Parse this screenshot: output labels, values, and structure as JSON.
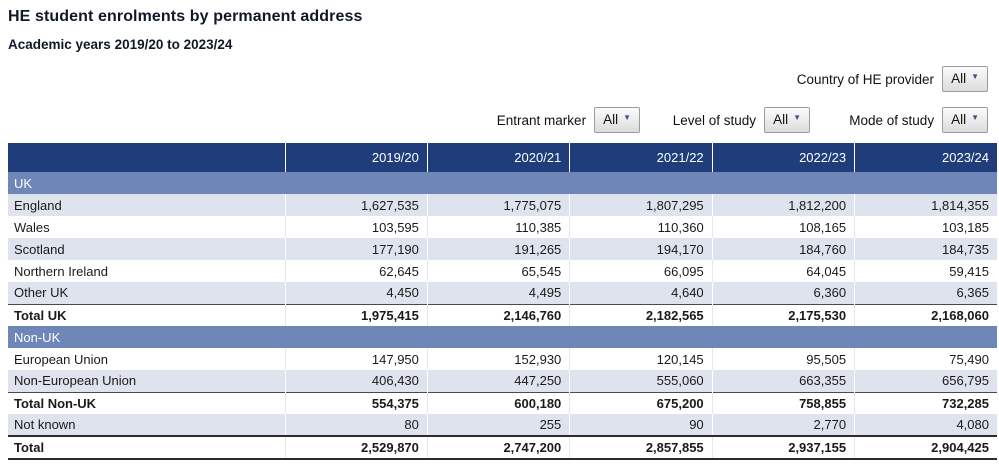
{
  "page": {
    "title": "HE student enrolments by permanent address",
    "subtitle": "Academic years 2019/20 to 2023/24"
  },
  "filters": {
    "country": {
      "label": "Country of HE provider",
      "value": "All"
    },
    "entrant": {
      "label": "Entrant marker",
      "value": "All"
    },
    "level": {
      "label": "Level of study",
      "value": "All"
    },
    "mode": {
      "label": "Mode of study",
      "value": "All"
    }
  },
  "icons": {
    "dropdown_caret": "▼"
  },
  "colors": {
    "header_bg": "#1f3d7a",
    "band_bg": "#6e87b8",
    "shade_row_bg": "#dfe3ee",
    "white_row_bg": "#ffffff",
    "header_text": "#ffffff"
  },
  "table": {
    "columns": [
      "",
      "2019/20",
      "2020/21",
      "2021/22",
      "2022/23",
      "2023/24"
    ],
    "rows": [
      {
        "type": "band",
        "label": "UK"
      },
      {
        "type": "data",
        "label": "England",
        "values": [
          "1,627,535",
          "1,775,075",
          "1,807,295",
          "1,812,200",
          "1,814,355"
        ],
        "shade": true
      },
      {
        "type": "data",
        "label": "Wales",
        "values": [
          "103,595",
          "110,385",
          "110,360",
          "108,165",
          "103,185"
        ]
      },
      {
        "type": "data",
        "label": "Scotland",
        "values": [
          "177,190",
          "191,265",
          "194,170",
          "184,760",
          "184,735"
        ],
        "shade": true
      },
      {
        "type": "data",
        "label": "Northern Ireland",
        "values": [
          "62,645",
          "65,545",
          "66,095",
          "64,045",
          "59,415"
        ]
      },
      {
        "type": "data",
        "label": "Other UK",
        "values": [
          "4,450",
          "4,495",
          "4,640",
          "6,360",
          "6,365"
        ],
        "shade": true
      },
      {
        "type": "data",
        "label": "Total UK",
        "values": [
          "1,975,415",
          "2,146,760",
          "2,182,565",
          "2,175,530",
          "2,168,060"
        ],
        "bold": true,
        "subtotal": true
      },
      {
        "type": "band",
        "label": "Non-UK"
      },
      {
        "type": "data",
        "label": "European Union",
        "values": [
          "147,950",
          "152,930",
          "120,145",
          "95,505",
          "75,490"
        ]
      },
      {
        "type": "data",
        "label": "Non-European Union",
        "values": [
          "406,430",
          "447,250",
          "555,060",
          "663,355",
          "656,795"
        ],
        "shade": true
      },
      {
        "type": "data",
        "label": "Total Non-UK",
        "values": [
          "554,375",
          "600,180",
          "675,200",
          "758,855",
          "732,285"
        ],
        "bold": true,
        "subtotal": true
      },
      {
        "type": "data",
        "label": "Not known",
        "values": [
          "80",
          "255",
          "90",
          "2,770",
          "4,080"
        ],
        "shade": true
      },
      {
        "type": "data",
        "label": "Total",
        "values": [
          "2,529,870",
          "2,747,200",
          "2,857,855",
          "2,937,155",
          "2,904,425"
        ],
        "bold": true,
        "grand": true
      }
    ]
  }
}
